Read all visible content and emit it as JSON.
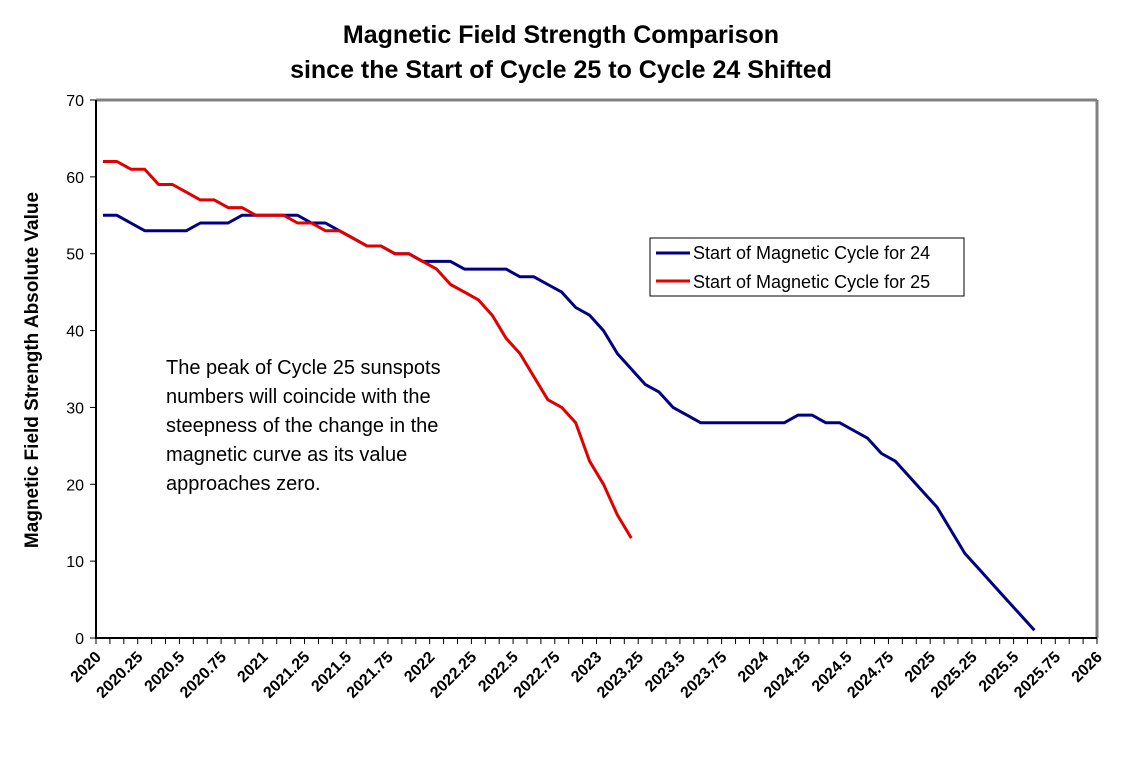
{
  "chart_data": {
    "type": "line",
    "title": [
      "Magnetic Field Strength Comparison",
      "since the Start of Cycle 25 to Cycle 24 Shifted"
    ],
    "xlabel": "",
    "ylabel": "Magnetic Field Strength Absolute Value",
    "xlim": [
      2020,
      2026
    ],
    "ylim": [
      0,
      70
    ],
    "yticks": [
      0,
      10,
      20,
      30,
      40,
      50,
      60,
      70
    ],
    "xticks": [
      "2020",
      "2020.25",
      "2020.5",
      "2020.75",
      "2021",
      "2021.25",
      "2021.5",
      "2021.75",
      "2022",
      "2022.25",
      "2022.5",
      "2022.75",
      "2023",
      "2023.25",
      "2023.5",
      "2023.75",
      "2024",
      "2024.25",
      "2024.5",
      "2024.75",
      "2025",
      "2025.25",
      "2025.5",
      "2025.75",
      "2026"
    ],
    "minor_tick_step_years": 0.0833,
    "grid": false,
    "x_start": 2020.0417,
    "x_step": 0.0833,
    "series": [
      {
        "name": "Start of Magnetic Cycle for 24",
        "color": "#000080",
        "values": [
          55,
          55,
          54,
          53,
          53,
          53,
          53,
          54,
          54,
          54,
          55,
          55,
          55,
          55,
          55,
          54,
          54,
          53,
          52,
          51,
          51,
          50,
          50,
          49,
          49,
          49,
          48,
          48,
          48,
          48,
          47,
          47,
          46,
          45,
          43,
          42,
          40,
          37,
          35,
          33,
          32,
          30,
          29,
          28,
          28,
          28,
          28,
          28,
          28,
          28,
          29,
          29,
          28,
          28,
          27,
          26,
          24,
          23,
          21,
          19,
          17,
          14,
          11,
          9,
          7,
          5,
          3,
          1
        ]
      },
      {
        "name": "Start of Magnetic Cycle for 25",
        "color": "#e00000",
        "values": [
          62,
          62,
          61,
          61,
          59,
          59,
          58,
          57,
          57,
          56,
          56,
          55,
          55,
          55,
          54,
          54,
          53,
          53,
          52,
          51,
          51,
          50,
          50,
          49,
          48,
          46,
          45,
          44,
          42,
          39,
          37,
          34,
          31,
          30,
          28,
          23,
          20,
          16,
          13
        ]
      }
    ],
    "legend": {
      "position": "upper-right-inside",
      "entries": [
        "Start of Magnetic Cycle for 24",
        "Start of Magnetic Cycle for 25"
      ]
    },
    "annotation": [
      "The peak of Cycle 25 sunspots",
      "numbers will coincide with the",
      "steepness of the change in the",
      "magnetic curve as its value",
      "approaches zero."
    ]
  }
}
